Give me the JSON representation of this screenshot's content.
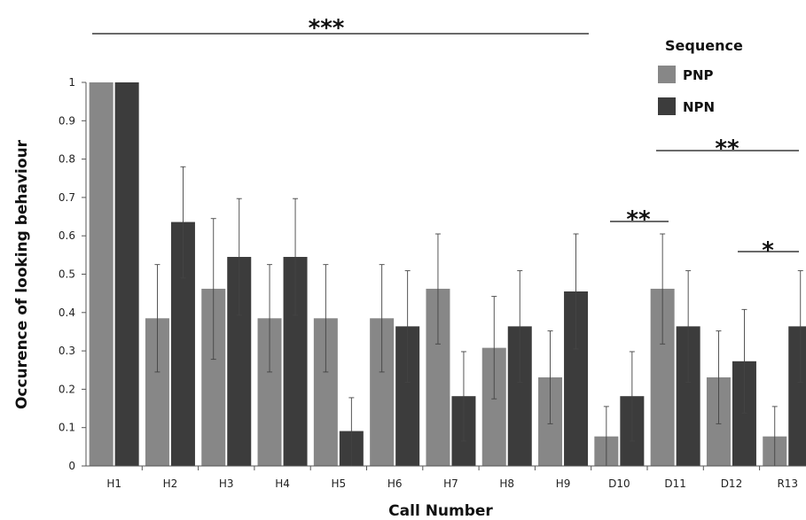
{
  "chart_data": {
    "type": "bar",
    "xlabel": "Call Number",
    "ylabel": "Occurence of looking behaviour",
    "categories": [
      "H1",
      "H2",
      "H3",
      "H4",
      "H5",
      "H6",
      "H7",
      "H8",
      "H9",
      "D10",
      "D11",
      "D12",
      "R13"
    ],
    "ylim": [
      0,
      1
    ],
    "yticks": [
      "0",
      "0.1",
      "0.2",
      "0.3",
      "0.4",
      "0.5",
      "0.6",
      "0.7",
      "0.8",
      "0.9",
      "1"
    ],
    "grid": false,
    "legend": {
      "title": "Sequence",
      "position": "top-right"
    },
    "series": [
      {
        "name": "PNP",
        "color": "#878787",
        "values": [
          1.0,
          0.385,
          0.462,
          0.385,
          0.385,
          0.385,
          0.462,
          0.308,
          0.231,
          0.077,
          0.462,
          0.231,
          0.077
        ],
        "err_low": [
          1.0,
          0.245,
          0.278,
          0.245,
          0.245,
          0.245,
          0.318,
          0.175,
          0.11,
          0.0,
          0.318,
          0.11,
          0.0
        ],
        "err_high": [
          1.0,
          0.525,
          0.645,
          0.525,
          0.525,
          0.525,
          0.605,
          0.442,
          0.352,
          0.155,
          0.605,
          0.352,
          0.155
        ]
      },
      {
        "name": "NPN",
        "color": "#3c3c3c",
        "values": [
          1.0,
          0.636,
          0.545,
          0.545,
          0.091,
          0.364,
          0.182,
          0.364,
          0.455,
          0.182,
          0.364,
          0.273,
          0.364
        ],
        "err_low": [
          1.0,
          0.49,
          0.393,
          0.393,
          0.0,
          0.218,
          0.065,
          0.218,
          0.305,
          0.065,
          0.218,
          0.138,
          0.218
        ],
        "err_high": [
          1.0,
          0.78,
          0.697,
          0.697,
          0.178,
          0.509,
          0.298,
          0.509,
          0.605,
          0.298,
          0.509,
          0.408,
          0.509
        ]
      }
    ],
    "annotations": [
      {
        "text": "***",
        "from": "H1",
        "to": "H9"
      },
      {
        "text": "**",
        "from": "D10",
        "to": "D10"
      },
      {
        "text": "**",
        "from": "D11",
        "to": "R13"
      },
      {
        "text": "*",
        "from": "R13",
        "to": "R13"
      }
    ]
  }
}
